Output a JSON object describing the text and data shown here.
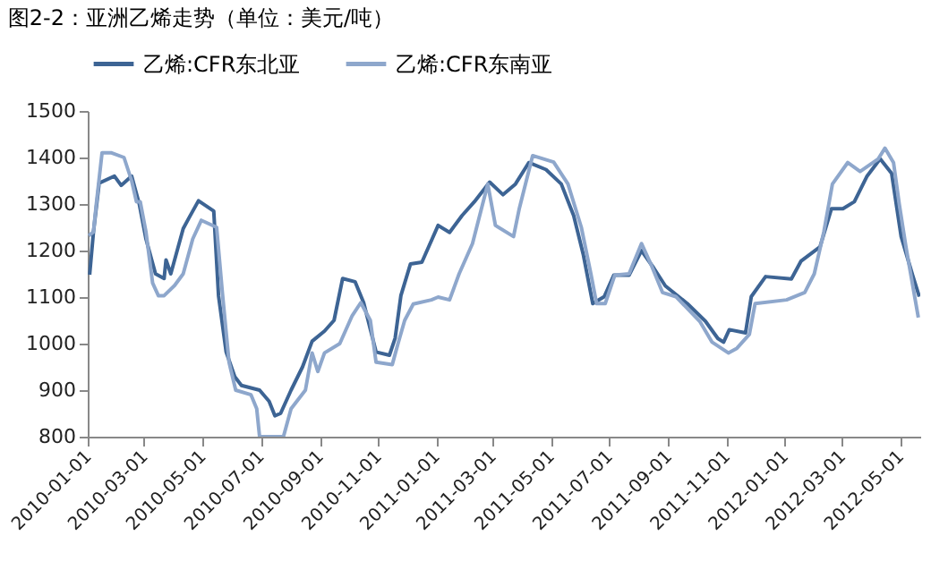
{
  "chart_data": {
    "type": "line",
    "title": "图2-2：亚洲乙烯走势（单位：美元/吨）",
    "xlim": [
      "2010-01-01",
      "2012-05-22"
    ],
    "xticks": [
      "2010-01-01",
      "2010-03-01",
      "2010-05-01",
      "2010-07-01",
      "2010-09-01",
      "2010-11-01",
      "2011-01-01",
      "2011-03-01",
      "2011-05-01",
      "2011-07-01",
      "2011-09-01",
      "2011-11-01",
      "2012-01-01",
      "2012-03-01",
      "2012-05-01"
    ],
    "ylim": [
      800,
      1500
    ],
    "yticks": [
      800,
      900,
      1000,
      1100,
      1200,
      1300,
      1400,
      1500
    ],
    "grid": false,
    "legend": "top",
    "marker": "none",
    "line_style": "solid",
    "series": [
      {
        "name": "乙烯:CFR东北亚",
        "color": "#3d6494",
        "x": [
          "2010-01-03",
          "2010-01-07",
          "2010-01-13",
          "2010-01-29",
          "2010-02-05",
          "2010-02-16",
          "2010-02-24",
          "2010-03-03",
          "2010-03-13",
          "2010-03-22",
          "2010-03-24",
          "2010-03-29",
          "2010-04-11",
          "2010-04-17",
          "2010-04-27",
          "2010-05-13",
          "2010-05-18",
          "2010-05-26",
          "2010-06-04",
          "2010-06-11",
          "2010-06-30",
          "2010-07-10",
          "2010-07-16",
          "2010-07-22",
          "2010-08-02",
          "2010-08-14",
          "2010-08-24",
          "2010-09-06",
          "2010-09-16",
          "2010-09-25",
          "2010-10-08",
          "2010-10-17",
          "2010-10-30",
          "2010-11-13",
          "2010-11-19",
          "2010-11-25",
          "2010-12-05",
          "2010-12-17",
          "2011-01-03",
          "2011-01-15",
          "2011-01-28",
          "2011-02-10",
          "2011-02-26",
          "2011-03-12",
          "2011-03-25",
          "2011-04-08",
          "2011-04-26",
          "2011-05-12",
          "2011-05-25",
          "2011-06-04",
          "2011-06-14",
          "2011-06-26",
          "2011-07-06",
          "2011-07-22",
          "2011-08-04",
          "2011-08-17",
          "2011-08-29",
          "2011-09-21",
          "2011-10-10",
          "2011-10-23",
          "2011-10-29",
          "2011-11-04",
          "2011-11-21",
          "2011-11-27",
          "2011-12-12",
          "2012-01-08",
          "2012-01-18",
          "2012-02-07",
          "2012-02-19",
          "2012-03-02",
          "2012-03-14",
          "2012-03-27",
          "2012-04-10",
          "2012-04-22",
          "2012-05-02",
          "2012-05-14",
          "2012-05-21"
        ],
        "values": [
          1148,
          1240,
          1345,
          1360,
          1340,
          1360,
          1300,
          1225,
          1150,
          1140,
          1180,
          1150,
          1247,
          1270,
          1307,
          1285,
          1103,
          982,
          929,
          910,
          900,
          876,
          845,
          850,
          900,
          950,
          1005,
          1027,
          1050,
          1140,
          1133,
          1088,
          982,
          975,
          1012,
          1103,
          1171,
          1175,
          1254,
          1239,
          1275,
          1305,
          1347,
          1320,
          1343,
          1389,
          1374,
          1343,
          1275,
          1192,
          1086,
          1101,
          1147,
          1147,
          1200,
          1162,
          1124,
          1086,
          1048,
          1011,
          1003,
          1030,
          1023,
          1101,
          1144,
          1139,
          1177,
          1208,
          1290,
          1290,
          1305,
          1359,
          1397,
          1366,
          1230,
          1147,
          1101
        ]
      },
      {
        "name": "乙烯:CFR东南亚",
        "color": "#8ea7cc",
        "x": [
          "2010-01-02",
          "2010-01-07",
          "2010-01-10",
          "2010-01-16",
          "2010-01-26",
          "2010-02-08",
          "2010-02-16",
          "2010-02-21",
          "2010-02-25",
          "2010-03-03",
          "2010-03-10",
          "2010-03-16",
          "2010-03-22",
          "2010-04-02",
          "2010-04-11",
          "2010-04-21",
          "2010-04-30",
          "2010-05-16",
          "2010-05-22",
          "2010-05-29",
          "2010-06-05",
          "2010-06-21",
          "2010-06-27",
          "2010-06-30",
          "2010-07-25",
          "2010-08-02",
          "2010-08-17",
          "2010-08-24",
          "2010-08-30",
          "2010-09-06",
          "2010-09-22",
          "2010-10-05",
          "2010-10-14",
          "2010-10-24",
          "2010-10-30",
          "2010-11-16",
          "2010-11-22",
          "2010-11-29",
          "2010-12-08",
          "2010-12-27",
          "2011-01-03",
          "2011-01-15",
          "2011-01-25",
          "2011-02-08",
          "2011-02-24",
          "2011-03-04",
          "2011-03-23",
          "2011-03-29",
          "2011-04-12",
          "2011-05-04",
          "2011-05-19",
          "2011-06-02",
          "2011-06-12",
          "2011-06-18",
          "2011-06-27",
          "2011-07-07",
          "2011-07-22",
          "2011-08-04",
          "2011-08-14",
          "2011-08-26",
          "2011-09-09",
          "2011-10-04",
          "2011-10-17",
          "2011-11-03",
          "2011-11-12",
          "2011-11-25",
          "2011-12-01",
          "2012-01-03",
          "2012-01-22",
          "2012-02-01",
          "2012-02-11",
          "2012-02-20",
          "2012-03-07",
          "2012-03-20",
          "2012-04-08",
          "2012-04-15",
          "2012-04-24",
          "2012-04-30",
          "2012-05-07",
          "2012-05-20"
        ],
        "values": [
          1232,
          1240,
          1300,
          1410,
          1410,
          1400,
          1350,
          1305,
          1305,
          1240,
          1130,
          1103,
          1103,
          1125,
          1150,
          1225,
          1265,
          1250,
          1110,
          960,
          900,
          890,
          860,
          800,
          800,
          860,
          900,
          980,
          940,
          980,
          1000,
          1060,
          1088,
          1050,
          960,
          955,
          1000,
          1050,
          1085,
          1094,
          1100,
          1094,
          1150,
          1215,
          1343,
          1254,
          1230,
          1290,
          1404,
          1390,
          1343,
          1250,
          1150,
          1086,
          1086,
          1147,
          1150,
          1215,
          1170,
          1110,
          1101,
          1048,
          1003,
          980,
          990,
          1020,
          1086,
          1094,
          1110,
          1150,
          1240,
          1343,
          1389,
          1370,
          1397,
          1420,
          1389,
          1300,
          1208,
          1056
        ]
      }
    ]
  }
}
